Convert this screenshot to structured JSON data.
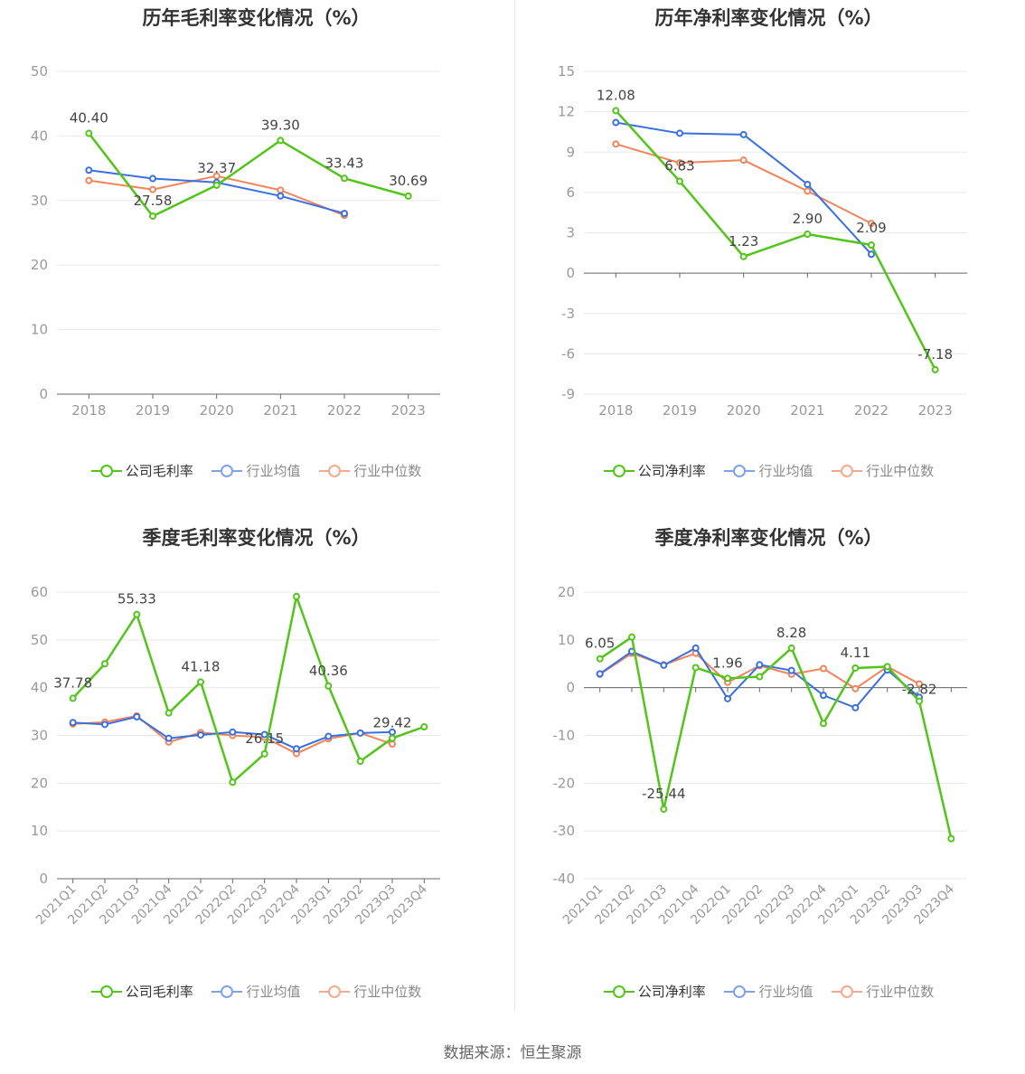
{
  "colors": {
    "company": "#52c41a",
    "avg": "#3a6fe0",
    "median": "#f0845a",
    "grid": "#e8e8e8",
    "axis": "#666666",
    "tick": "#999999",
    "label": "#444444"
  },
  "legend": {
    "gross": [
      "公司毛利率",
      "行业均值",
      "行业中位数"
    ],
    "net": [
      "公司净利率",
      "行业均值",
      "行业中位数"
    ]
  },
  "source": "数据来源：恒生聚源",
  "chart_data": [
    {
      "id": "annual-gross",
      "type": "line",
      "title": "历年毛利率变化情况（%）",
      "categories": [
        "2018",
        "2019",
        "2020",
        "2021",
        "2022",
        "2023"
      ],
      "ylim": [
        0,
        50
      ],
      "yticks": [
        0,
        10,
        20,
        30,
        40,
        50
      ],
      "rotate_x": false,
      "series": [
        {
          "name": "公司毛利率",
          "values": [
            40.4,
            27.58,
            32.37,
            39.3,
            33.43,
            30.69
          ],
          "labels": [
            "40.40",
            "27.58",
            "32.37",
            "39.30",
            "33.43",
            "30.69"
          ]
        },
        {
          "name": "行业均值",
          "values": [
            34.7,
            33.4,
            32.8,
            30.7,
            28.0,
            null
          ]
        },
        {
          "name": "行业中位数",
          "values": [
            33.1,
            31.7,
            33.8,
            31.6,
            27.7,
            null
          ]
        }
      ]
    },
    {
      "id": "annual-net",
      "type": "line",
      "title": "历年净利率变化情况（%）",
      "categories": [
        "2018",
        "2019",
        "2020",
        "2021",
        "2022",
        "2023"
      ],
      "ylim": [
        -9,
        15
      ],
      "yticks": [
        -9,
        -6,
        -3,
        0,
        3,
        6,
        9,
        12,
        15
      ],
      "rotate_x": false,
      "series": [
        {
          "name": "公司净利率",
          "values": [
            12.08,
            6.83,
            1.23,
            2.9,
            2.09,
            -7.18
          ],
          "labels": [
            "12.08",
            "6.83",
            "1.23",
            "2.90",
            "2.09",
            "-7.18"
          ]
        },
        {
          "name": "行业均值",
          "values": [
            11.2,
            10.4,
            10.3,
            6.6,
            1.4,
            null
          ]
        },
        {
          "name": "行业中位数",
          "values": [
            9.6,
            8.2,
            8.4,
            6.1,
            3.7,
            null
          ]
        }
      ]
    },
    {
      "id": "quarter-gross",
      "type": "line",
      "title": "季度毛利率变化情况（%）",
      "categories": [
        "2021Q1",
        "2021Q2",
        "2021Q3",
        "2021Q4",
        "2022Q1",
        "2022Q2",
        "2022Q3",
        "2022Q4",
        "2023Q1",
        "2023Q2",
        "2023Q3",
        "2023Q4"
      ],
      "ylim": [
        0,
        60
      ],
      "yticks": [
        0,
        10,
        20,
        30,
        40,
        50,
        60
      ],
      "rotate_x": true,
      "series": [
        {
          "name": "公司毛利率",
          "values": [
            37.78,
            45.0,
            55.33,
            34.7,
            41.18,
            20.2,
            26.15,
            59.1,
            40.36,
            24.6,
            29.42,
            31.8
          ],
          "labels": [
            "37.78",
            null,
            "55.33",
            null,
            "41.18",
            null,
            "26.15",
            null,
            "40.36",
            null,
            "29.42",
            null
          ]
        },
        {
          "name": "行业均值",
          "values": [
            32.7,
            32.3,
            33.9,
            29.4,
            30.1,
            30.7,
            30.2,
            27.2,
            29.8,
            30.5,
            30.7,
            null
          ]
        },
        {
          "name": "行业中位数",
          "values": [
            32.4,
            32.8,
            34.1,
            28.6,
            30.6,
            30.0,
            29.6,
            26.2,
            29.3,
            30.5,
            28.2,
            null
          ]
        }
      ]
    },
    {
      "id": "quarter-net",
      "type": "line",
      "title": "季度净利率变化情况（%）",
      "categories": [
        "2021Q1",
        "2021Q2",
        "2021Q3",
        "2021Q4",
        "2022Q1",
        "2022Q2",
        "2022Q3",
        "2022Q4",
        "2023Q1",
        "2023Q2",
        "2023Q3",
        "2023Q4"
      ],
      "ylim": [
        -40,
        20
      ],
      "yticks": [
        -40,
        -30,
        -20,
        -10,
        0,
        10,
        20
      ],
      "rotate_x": true,
      "series": [
        {
          "name": "公司净利率",
          "values": [
            6.05,
            10.6,
            -25.44,
            4.2,
            1.96,
            2.3,
            8.28,
            -7.5,
            4.11,
            4.4,
            -2.82,
            -31.6
          ],
          "labels": [
            "6.05",
            null,
            "-25.44",
            null,
            "1.96",
            null,
            "8.28",
            null,
            "4.11",
            null,
            "-2.82",
            null
          ]
        },
        {
          "name": "行业均值",
          "values": [
            2.9,
            7.6,
            4.7,
            8.3,
            -2.3,
            4.8,
            3.6,
            -1.6,
            -4.2,
            3.7,
            -2.0,
            null
          ]
        },
        {
          "name": "行业中位数",
          "values": [
            2.8,
            7.2,
            4.8,
            7.2,
            1.1,
            4.6,
            2.8,
            4.0,
            -0.2,
            4.4,
            0.8,
            null
          ]
        }
      ]
    }
  ]
}
